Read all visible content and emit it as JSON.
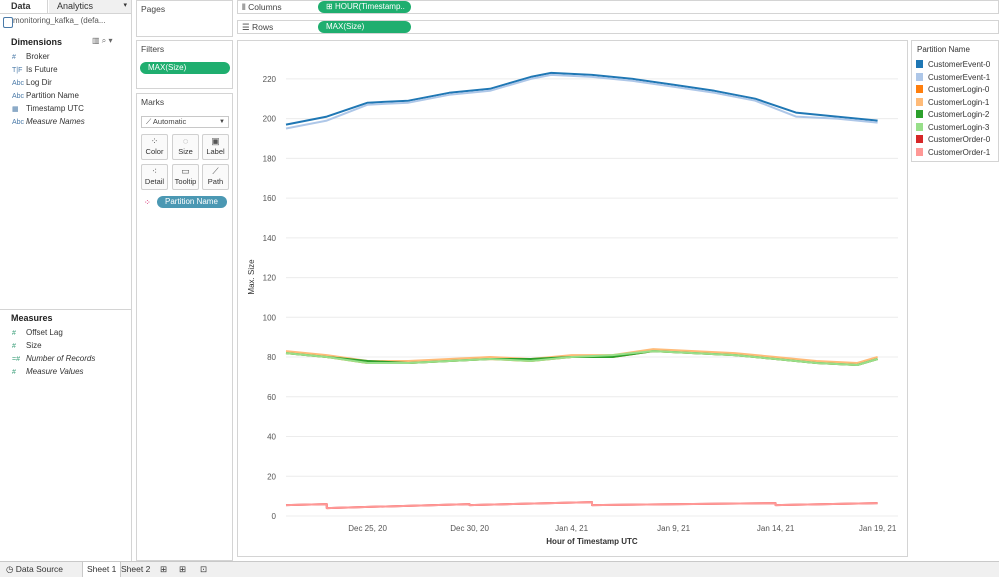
{
  "left_pane": {
    "tabs": [
      "Data",
      "Analytics"
    ],
    "datasource": "monitoring_kafka_ (defa...",
    "dimensions_title": "Dimensions",
    "dimensions": [
      {
        "icon": "#",
        "label": "Broker"
      },
      {
        "icon": "T|F",
        "label": "Is Future"
      },
      {
        "icon": "Abc",
        "label": "Log Dir"
      },
      {
        "icon": "Abc",
        "label": "Partition Name"
      },
      {
        "icon": "cal",
        "label": "Timestamp UTC"
      },
      {
        "icon": "Abc",
        "label": "Measure Names"
      }
    ],
    "measures_title": "Measures",
    "measures": [
      {
        "icon": "#",
        "label": "Offset Lag"
      },
      {
        "icon": "#",
        "label": "Size"
      },
      {
        "icon": "=#",
        "label": "Number of Records"
      },
      {
        "icon": "#",
        "label": "Measure Values"
      }
    ]
  },
  "cards": {
    "pages_title": "Pages",
    "filters_title": "Filters",
    "filter_pill": "MAX(Size)",
    "marks_title": "Marks",
    "mark_type": "Automatic",
    "mark_buttons": [
      "Color",
      "Size",
      "Label",
      "Detail",
      "Tooltip",
      "Path"
    ],
    "color_pill": "Partition Name"
  },
  "shelves": {
    "columns_label": "Columns",
    "columns_pill": "HOUR(Timestamp..",
    "rows_label": "Rows",
    "rows_pill": "MAX(Size)"
  },
  "legend": {
    "title": "Partition Name",
    "items": [
      {
        "label": "CustomerEvent-0",
        "color": "#1f77b4"
      },
      {
        "label": "CustomerEvent-1",
        "color": "#aec7e8"
      },
      {
        "label": "CustomerLogin-0",
        "color": "#ff7f0e"
      },
      {
        "label": "CustomerLogin-1",
        "color": "#ffbb78"
      },
      {
        "label": "CustomerLogin-2",
        "color": "#2ca02c"
      },
      {
        "label": "CustomerLogin-3",
        "color": "#98df8a"
      },
      {
        "label": "CustomerOrder-0",
        "color": "#d62728"
      },
      {
        "label": "CustomerOrder-1",
        "color": "#ff9896"
      }
    ]
  },
  "chart_data": {
    "type": "line",
    "xlabel": "Hour of Timestamp UTC",
    "ylabel": "Max. Size",
    "ylim": [
      0,
      230
    ],
    "yticks": [
      0,
      20,
      40,
      60,
      80,
      100,
      120,
      140,
      160,
      180,
      200,
      220
    ],
    "xlim": [
      "2020-12-21",
      "2021-01-20"
    ],
    "xticks": [
      "Dec 25, 20",
      "Dec 30, 20",
      "Jan 4, 21",
      "Jan 9, 21",
      "Jan 14, 21",
      "Jan 19, 21"
    ],
    "xtick_dates": [
      "2020-12-25",
      "2020-12-30",
      "2021-01-04",
      "2021-01-09",
      "2021-01-14",
      "2021-01-19"
    ],
    "grid": true,
    "series": [
      {
        "name": "CustomerEvent-0",
        "x": [
          "2020-12-21",
          "2020-12-23",
          "2020-12-25",
          "2020-12-27",
          "2020-12-29",
          "2020-12-31",
          "2021-01-02",
          "2021-01-03",
          "2021-01-05",
          "2021-01-07",
          "2021-01-09",
          "2021-01-11",
          "2021-01-13",
          "2021-01-15",
          "2021-01-17",
          "2021-01-19"
        ],
        "values": [
          197,
          201,
          208,
          209,
          213,
          215,
          221,
          223,
          222,
          220,
          217,
          214,
          210,
          203,
          201,
          199
        ]
      },
      {
        "name": "CustomerEvent-1",
        "x": [
          "2020-12-21",
          "2020-12-23",
          "2020-12-25",
          "2020-12-27",
          "2020-12-29",
          "2020-12-31",
          "2021-01-02",
          "2021-01-03",
          "2021-01-05",
          "2021-01-07",
          "2021-01-09",
          "2021-01-11",
          "2021-01-13",
          "2021-01-15",
          "2021-01-17",
          "2021-01-19"
        ],
        "values": [
          195,
          199,
          207,
          208,
          212,
          214,
          220,
          222,
          221,
          219,
          216,
          213,
          209,
          201,
          200,
          198
        ]
      },
      {
        "name": "CustomerLogin-0",
        "x": [
          "2020-12-21",
          "2020-12-23",
          "2020-12-25",
          "2020-12-27",
          "2020-12-29",
          "2020-12-31",
          "2021-01-02",
          "2021-01-04",
          "2021-01-06",
          "2021-01-08",
          "2021-01-10",
          "2021-01-12",
          "2021-01-14",
          "2021-01-16",
          "2021-01-18",
          "2021-01-19"
        ],
        "values": [
          82,
          80,
          77,
          77,
          78,
          79,
          78,
          80,
          80,
          83,
          82,
          81,
          79,
          77,
          76,
          79
        ]
      },
      {
        "name": "CustomerLogin-1",
        "x": [
          "2020-12-21",
          "2020-12-23",
          "2020-12-25",
          "2020-12-27",
          "2020-12-29",
          "2020-12-31",
          "2021-01-02",
          "2021-01-04",
          "2021-01-06",
          "2021-01-08",
          "2021-01-10",
          "2021-01-12",
          "2021-01-14",
          "2021-01-16",
          "2021-01-18",
          "2021-01-19"
        ],
        "values": [
          83,
          81,
          78,
          78,
          79,
          80,
          79,
          81,
          81,
          84,
          83,
          82,
          80,
          78,
          77,
          80
        ]
      },
      {
        "name": "CustomerLogin-2",
        "x": [
          "2020-12-21",
          "2020-12-23",
          "2020-12-25",
          "2020-12-27",
          "2020-12-29",
          "2020-12-31",
          "2021-01-02",
          "2021-01-04",
          "2021-01-06",
          "2021-01-08",
          "2021-01-10",
          "2021-01-12",
          "2021-01-14",
          "2021-01-16",
          "2021-01-18",
          "2021-01-19"
        ],
        "values": [
          82,
          80,
          78,
          77,
          78,
          79,
          79,
          80,
          80,
          83,
          82,
          81,
          79,
          77,
          76,
          79
        ]
      },
      {
        "name": "CustomerLogin-3",
        "x": [
          "2020-12-21",
          "2020-12-23",
          "2020-12-25",
          "2020-12-27",
          "2020-12-29",
          "2020-12-31",
          "2021-01-02",
          "2021-01-04",
          "2021-01-06",
          "2021-01-08",
          "2021-01-10",
          "2021-01-12",
          "2021-01-14",
          "2021-01-16",
          "2021-01-18",
          "2021-01-19"
        ],
        "values": [
          82,
          80,
          77,
          77,
          78,
          79,
          78,
          80,
          81,
          83,
          82,
          81,
          79,
          77,
          76,
          79
        ]
      },
      {
        "name": "CustomerOrder-0",
        "x": [
          "2020-12-21",
          "2020-12-23",
          "2020-12-23",
          "2020-12-30",
          "2020-12-30",
          "2021-01-05",
          "2021-01-05",
          "2021-01-14",
          "2021-01-14",
          "2021-01-19"
        ],
        "values": [
          5.5,
          6,
          4,
          6,
          5.5,
          7,
          5.5,
          6.5,
          5.5,
          6.5
        ]
      },
      {
        "name": "CustomerOrder-1",
        "x": [
          "2020-12-21",
          "2020-12-23",
          "2020-12-23",
          "2020-12-30",
          "2020-12-30",
          "2021-01-05",
          "2021-01-05",
          "2021-01-14",
          "2021-01-14",
          "2021-01-19"
        ],
        "values": [
          5.5,
          6,
          4,
          6,
          5.5,
          7,
          5.5,
          6.5,
          5.5,
          6.5
        ]
      }
    ]
  },
  "bottom_tabs": [
    "Data Source",
    "Sheet 1",
    "Sheet 2"
  ]
}
